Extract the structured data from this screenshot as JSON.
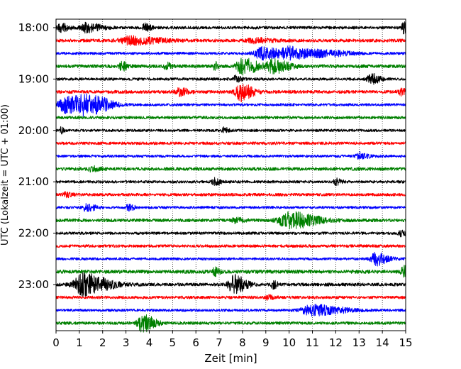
{
  "chart_data": {
    "type": "line",
    "title": "",
    "xlabel": "Zeit  [min]",
    "ylabel": "UTC (Lokalzeit = UTC + 01:00)",
    "xlim": [
      0,
      15
    ],
    "x_ticks": [
      "0",
      "1",
      "2",
      "3",
      "4",
      "5",
      "6",
      "7",
      "8",
      "9",
      "10",
      "11",
      "12",
      "13",
      "14",
      "15"
    ],
    "y_ticks": [
      "18:00",
      "19:00",
      "20:00",
      "21:00",
      "22:00",
      "23:00"
    ],
    "grid": "vertical dotted at each minute",
    "colors": [
      "#000000",
      "#ff0000",
      "#0000ff",
      "#008000"
    ],
    "series": [
      {
        "start": "18:00",
        "color": "#000000",
        "base": 2.0,
        "events": [
          {
            "t": 0.2,
            "a": 5,
            "w": 0.3
          },
          {
            "t": 1.3,
            "a": 6,
            "w": 0.5
          },
          {
            "t": 3.8,
            "a": 5,
            "w": 0.2
          },
          {
            "t": 14.9,
            "a": 7,
            "w": 0.15
          }
        ]
      },
      {
        "start": "18:15",
        "color": "#ff0000",
        "base": 2.2,
        "events": [
          {
            "t": 3.2,
            "a": 5,
            "w": 1.0
          },
          {
            "t": 8.5,
            "a": 3,
            "w": 0.6
          }
        ]
      },
      {
        "start": "18:30",
        "color": "#0000ff",
        "base": 1.8,
        "events": [
          {
            "t": 8.8,
            "a": 8,
            "w": 0.6
          },
          {
            "t": 10.0,
            "a": 8,
            "w": 0.8
          },
          {
            "t": 11.5,
            "a": 4,
            "w": 0.8
          }
        ]
      },
      {
        "start": "18:45",
        "color": "#008000",
        "base": 2.3,
        "events": [
          {
            "t": 2.8,
            "a": 6,
            "w": 0.2
          },
          {
            "t": 4.7,
            "a": 5,
            "w": 0.2
          },
          {
            "t": 6.8,
            "a": 6,
            "w": 0.1
          },
          {
            "t": 8.0,
            "a": 11,
            "w": 0.5
          },
          {
            "t": 9.3,
            "a": 9,
            "w": 0.5
          }
        ]
      },
      {
        "start": "19:00",
        "color": "#000000",
        "base": 1.9,
        "events": [
          {
            "t": 7.7,
            "a": 4,
            "w": 0.2
          },
          {
            "t": 13.5,
            "a": 7,
            "w": 0.3
          }
        ]
      },
      {
        "start": "19:15",
        "color": "#ff0000",
        "base": 2.2,
        "events": [
          {
            "t": 5.3,
            "a": 5,
            "w": 0.3
          },
          {
            "t": 7.9,
            "a": 12,
            "w": 0.4
          },
          {
            "t": 14.8,
            "a": 4,
            "w": 0.3
          }
        ]
      },
      {
        "start": "19:30",
        "color": "#0000ff",
        "base": 1.8,
        "events": [
          {
            "t": 0.4,
            "a": 11,
            "w": 0.6
          },
          {
            "t": 1.2,
            "a": 12,
            "w": 0.6
          },
          {
            "t": 1.9,
            "a": 5,
            "w": 0.5
          }
        ]
      },
      {
        "start": "19:45",
        "color": "#008000",
        "base": 2.0,
        "events": []
      },
      {
        "start": "20:00",
        "color": "#000000",
        "base": 1.8,
        "events": [
          {
            "t": 0.2,
            "a": 4,
            "w": 0.1
          },
          {
            "t": 7.2,
            "a": 4,
            "w": 0.15
          }
        ]
      },
      {
        "start": "20:15",
        "color": "#ff0000",
        "base": 2.0,
        "events": []
      },
      {
        "start": "20:30",
        "color": "#0000ff",
        "base": 1.8,
        "events": [
          {
            "t": 13.0,
            "a": 5,
            "w": 0.3
          }
        ]
      },
      {
        "start": "20:45",
        "color": "#008000",
        "base": 2.2,
        "events": [
          {
            "t": 1.5,
            "a": 3,
            "w": 0.3
          }
        ]
      },
      {
        "start": "21:00",
        "color": "#000000",
        "base": 1.9,
        "events": [
          {
            "t": 6.8,
            "a": 5,
            "w": 0.2
          },
          {
            "t": 12.0,
            "a": 4,
            "w": 0.2
          }
        ]
      },
      {
        "start": "21:15",
        "color": "#ff0000",
        "base": 2.0,
        "events": [
          {
            "t": 0.4,
            "a": 3,
            "w": 0.2
          }
        ]
      },
      {
        "start": "21:30",
        "color": "#0000ff",
        "base": 1.8,
        "events": [
          {
            "t": 1.3,
            "a": 5,
            "w": 0.3
          },
          {
            "t": 3.1,
            "a": 4,
            "w": 0.2
          }
        ]
      },
      {
        "start": "21:45",
        "color": "#008000",
        "base": 2.2,
        "events": [
          {
            "t": 7.7,
            "a": 3,
            "w": 0.3
          },
          {
            "t": 10.0,
            "a": 11,
            "w": 0.9
          }
        ]
      },
      {
        "start": "22:00",
        "color": "#000000",
        "base": 1.9,
        "events": [
          {
            "t": 14.8,
            "a": 4,
            "w": 0.2
          }
        ]
      },
      {
        "start": "22:15",
        "color": "#ff0000",
        "base": 2.0,
        "events": []
      },
      {
        "start": "22:30",
        "color": "#0000ff",
        "base": 1.8,
        "events": [
          {
            "t": 13.7,
            "a": 9,
            "w": 0.4
          }
        ]
      },
      {
        "start": "22:45",
        "color": "#008000",
        "base": 2.5,
        "events": [
          {
            "t": 6.8,
            "a": 6,
            "w": 0.15
          },
          {
            "t": 14.9,
            "a": 7,
            "w": 0.2
          }
        ]
      },
      {
        "start": "23:00",
        "color": "#000000",
        "base": 2.2,
        "events": [
          {
            "t": 1.2,
            "a": 15,
            "w": 0.8
          },
          {
            "t": 7.6,
            "a": 13,
            "w": 0.4
          },
          {
            "t": 9.3,
            "a": 5,
            "w": 0.15
          }
        ]
      },
      {
        "start": "23:15",
        "color": "#ff0000",
        "base": 2.0,
        "events": [
          {
            "t": 9.1,
            "a": 3,
            "w": 0.2
          }
        ]
      },
      {
        "start": "23:30",
        "color": "#0000ff",
        "base": 1.8,
        "events": [
          {
            "t": 11.0,
            "a": 7,
            "w": 1.0
          }
        ]
      },
      {
        "start": "23:45",
        "color": "#008000",
        "base": 2.0,
        "events": [
          {
            "t": 3.7,
            "a": 12,
            "w": 0.4
          }
        ]
      }
    ]
  }
}
